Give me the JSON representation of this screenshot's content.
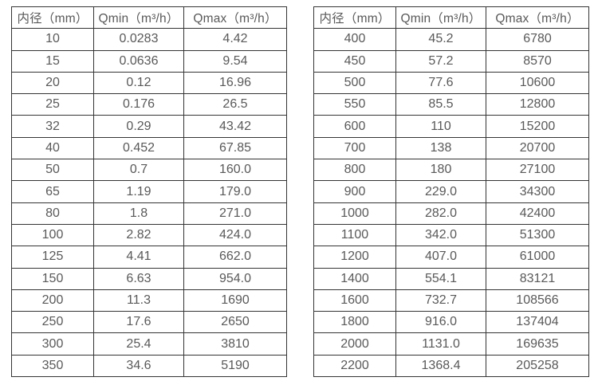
{
  "colors": {
    "border": "#343434",
    "text": "#595959",
    "background": "#ffffff"
  },
  "tables": [
    {
      "name": "flow-table-small-diameters",
      "headers": [
        "内径（mm）",
        "Qmin（m³/h）",
        "Qmax（m³/h）"
      ],
      "rows": [
        [
          "10",
          "0.0283",
          "4.42"
        ],
        [
          "15",
          "0.0636",
          "9.54"
        ],
        [
          "20",
          "0.12",
          "16.96"
        ],
        [
          "25",
          "0.176",
          "26.5"
        ],
        [
          "32",
          "0.29",
          "43.42"
        ],
        [
          "40",
          "0.452",
          "67.85"
        ],
        [
          "50",
          "0.7",
          "160.0"
        ],
        [
          "65",
          "1.19",
          "179.0"
        ],
        [
          "80",
          "1.8",
          "271.0"
        ],
        [
          "100",
          "2.82",
          "424.0"
        ],
        [
          "125",
          "4.41",
          "662.0"
        ],
        [
          "150",
          "6.63",
          "954.0"
        ],
        [
          "200",
          "11.3",
          "1690"
        ],
        [
          "250",
          "17.6",
          "2650"
        ],
        [
          "300",
          "25.4",
          "3810"
        ],
        [
          "350",
          "34.6",
          "5190"
        ]
      ]
    },
    {
      "name": "flow-table-large-diameters",
      "headers": [
        "内径（mm）",
        "Qmin（m³/h）",
        "Qmax（m³/h）"
      ],
      "rows": [
        [
          "400",
          "45.2",
          "6780"
        ],
        [
          "450",
          "57.2",
          "8570"
        ],
        [
          "500",
          "77.6",
          "10600"
        ],
        [
          "550",
          "85.5",
          "12800"
        ],
        [
          "600",
          "110",
          "15200"
        ],
        [
          "700",
          "138",
          "20700"
        ],
        [
          "800",
          "180",
          "27100"
        ],
        [
          "900",
          "229.0",
          "34300"
        ],
        [
          "1000",
          "282.0",
          "42400"
        ],
        [
          "1100",
          "342.0",
          "51300"
        ],
        [
          "1200",
          "407.0",
          "61000"
        ],
        [
          "1400",
          "554.1",
          "83121"
        ],
        [
          "1600",
          "732.7",
          "108566"
        ],
        [
          "1800",
          "916.0",
          "137404"
        ],
        [
          "2000",
          "1131.0",
          "169635"
        ],
        [
          "2200",
          "1368.4",
          "205258"
        ]
      ]
    }
  ]
}
